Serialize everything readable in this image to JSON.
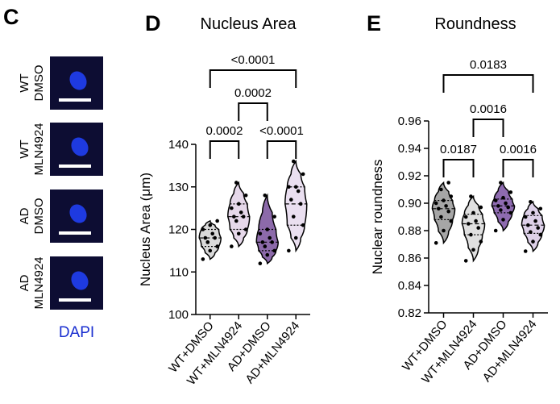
{
  "panel_c": {
    "label": "C",
    "rows": [
      {
        "line1": "WT",
        "line2": "DMSO"
      },
      {
        "line1": "WT",
        "line2": "MLN4924"
      },
      {
        "line1": "AD",
        "line2": "DMSO"
      },
      {
        "line1": "AD",
        "line2": "MLN4924"
      }
    ],
    "stain": "DAPI"
  },
  "chart_data": [
    {
      "type": "violin",
      "panel_label": "D",
      "title": "Nucleus Area",
      "y_label": "Nucleus Area (μm)",
      "categories": [
        "WT+DMSO",
        "WT+MLN4924",
        "AD+DMSO",
        "AD+MLN4924"
      ],
      "colors": [
        "#d9d9d9",
        "#e6d8ea",
        "#8c6aaa",
        "#eadff0"
      ],
      "min": [
        113,
        116,
        112,
        115
      ],
      "q1": [
        116,
        120,
        115,
        121
      ],
      "median": [
        118,
        123,
        117,
        126
      ],
      "q3": [
        120,
        126,
        120,
        130
      ],
      "max": [
        122,
        131,
        128,
        136
      ],
      "points": [
        [
          113,
          115,
          116,
          117,
          118,
          118,
          119,
          120,
          121,
          122,
          117
        ],
        [
          116,
          119,
          120,
          122,
          123,
          123,
          124,
          125,
          126,
          128,
          131
        ],
        [
          112,
          114,
          115,
          116,
          117,
          117,
          118,
          119,
          120,
          123,
          128
        ],
        [
          115,
          118,
          121,
          123,
          126,
          127,
          129,
          130,
          130,
          133,
          136
        ]
      ],
      "ylim": [
        100,
        140
      ],
      "yticks": [
        100,
        110,
        120,
        130,
        140
      ],
      "comparisons": [
        {
          "groups": [
            0,
            1
          ],
          "label": "0.0002"
        },
        {
          "groups": [
            2,
            3
          ],
          "label": "<0.0001"
        },
        {
          "groups": [
            1,
            2
          ],
          "label": "0.0002"
        },
        {
          "groups": [
            0,
            3
          ],
          "label": "<0.0001"
        }
      ]
    },
    {
      "type": "violin",
      "panel_label": "E",
      "title": "Roundness",
      "y_label": "Nuclear roundness",
      "categories": [
        "WT+DMSO",
        "WT+MLN4924",
        "AD+DMSO",
        "AD+MLN4924"
      ],
      "colors": [
        "#a6a6a6",
        "#e0e0e0",
        "#8e6bb0",
        "#ddd0e8"
      ],
      "min": [
        0.871,
        0.858,
        0.88,
        0.865
      ],
      "q1": [
        0.888,
        0.877,
        0.893,
        0.878
      ],
      "median": [
        0.896,
        0.885,
        0.898,
        0.884
      ],
      "q3": [
        0.902,
        0.892,
        0.903,
        0.891
      ],
      "max": [
        0.915,
        0.905,
        0.915,
        0.901
      ],
      "points": [
        [
          0.871,
          0.88,
          0.887,
          0.89,
          0.894,
          0.896,
          0.898,
          0.9,
          0.902,
          0.905,
          0.91,
          0.915
        ],
        [
          0.858,
          0.866,
          0.872,
          0.877,
          0.882,
          0.885,
          0.887,
          0.89,
          0.893,
          0.897,
          0.905
        ],
        [
          0.88,
          0.888,
          0.893,
          0.895,
          0.897,
          0.898,
          0.9,
          0.902,
          0.904,
          0.908,
          0.915
        ],
        [
          0.865,
          0.872,
          0.877,
          0.879,
          0.882,
          0.884,
          0.887,
          0.89,
          0.893,
          0.896,
          0.901
        ]
      ],
      "ylim": [
        0.82,
        0.96
      ],
      "yticks": [
        0.82,
        0.84,
        0.86,
        0.88,
        {
          "value": 0.9,
          "label": "0.90"
        },
        0.92,
        0.94,
        0.96
      ],
      "comparisons": [
        {
          "groups": [
            0,
            1
          ],
          "label": "0.0187"
        },
        {
          "groups": [
            2,
            3
          ],
          "label": "0.0016"
        },
        {
          "groups": [
            1,
            2
          ],
          "label": "0.0016"
        },
        {
          "groups": [
            0,
            3
          ],
          "label": "0.0183"
        }
      ]
    }
  ]
}
